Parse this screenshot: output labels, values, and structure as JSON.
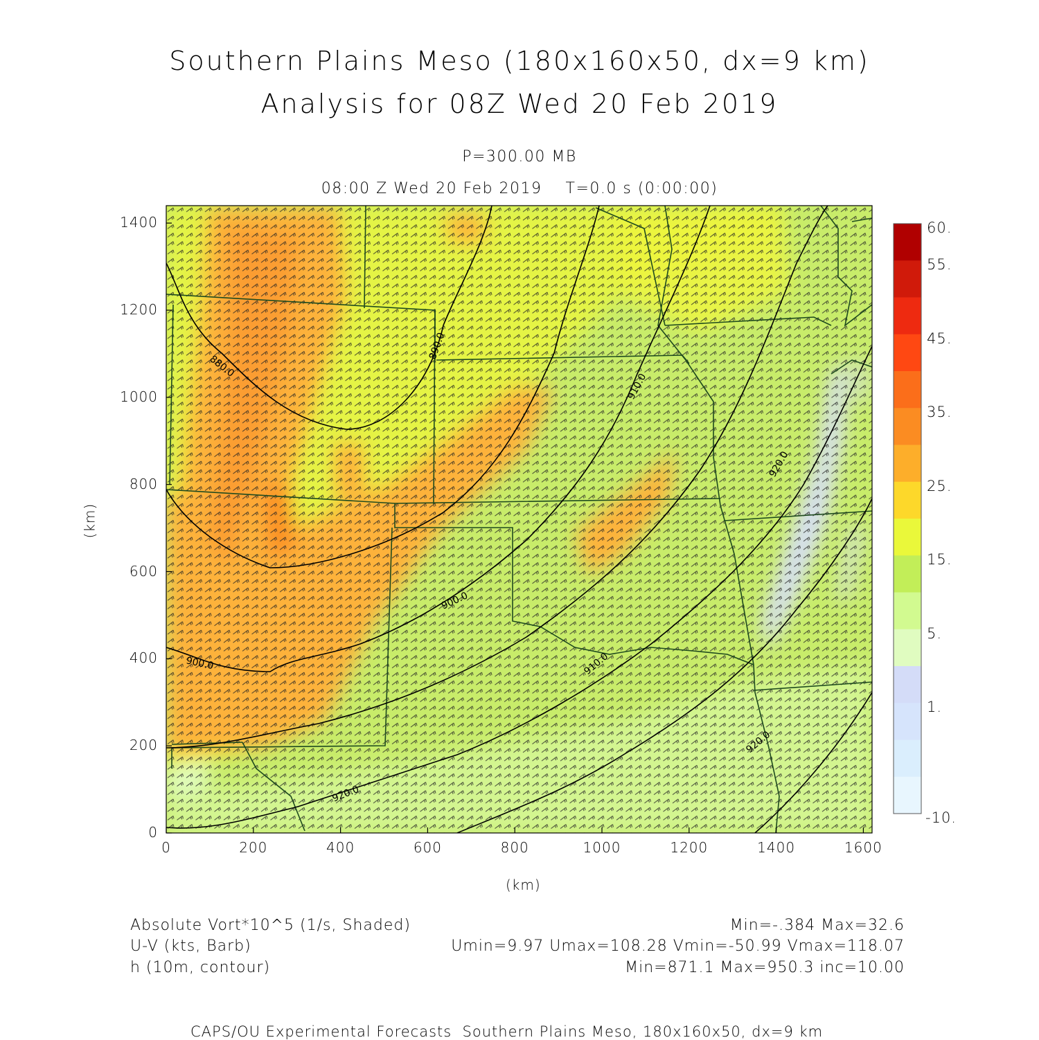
{
  "title_line1": "Southern Plains Meso (180x160x50, dx=9 km)",
  "title_line2": "Analysis for 08Z Wed 20 Feb 2019",
  "level_label": "P=300.00 MB",
  "time_label": "08:00 Z Wed 20 Feb 2019    T=0.0 s (0:00:00)",
  "axes": {
    "x_label": "(km)",
    "y_label": "(km)",
    "x_ticks": [
      "0",
      "200",
      "400",
      "600",
      "800",
      "1000",
      "1200",
      "1400",
      "1600"
    ],
    "y_ticks": [
      "0",
      "200",
      "400",
      "600",
      "800",
      "1000",
      "1200",
      "1400"
    ],
    "x_range_km": [
      0,
      1620
    ],
    "y_range_km": [
      0,
      1440
    ]
  },
  "colorbar": {
    "labels": [
      "60.",
      "55.",
      "45.",
      "35.",
      "25.",
      "15.",
      "5.",
      "1.",
      "-10."
    ],
    "colors": [
      "#b00000",
      "#d01a0a",
      "#ee2a10",
      "#ff4812",
      "#fb6e1a",
      "#fb8c22",
      "#fdae2a",
      "#fdd82a",
      "#eaf83a",
      "#c2ee58",
      "#d2fa90",
      "#e0fcc0",
      "#d4dcf8",
      "#d6e4fc",
      "#daeefd",
      "#e8f6fe"
    ]
  },
  "contour_labels": [
    "880.0",
    "890.0",
    "900.0",
    "910.0",
    "920.0"
  ],
  "field_legend": [
    {
      "left": "Absolute Vort*10^5 (1/s, Shaded)",
      "right": "Min=-.384 Max=32.6"
    },
    {
      "left": "U-V (kts, Barb)",
      "right": "Umin=9.97 Umax=108.28 Vmin=-50.99 Vmax=118.07"
    },
    {
      "left": "h (10m, contour)",
      "right": "Min=871.1 Max=950.3 inc=10.00"
    }
  ],
  "footer": "CAPS/OU Experimental Forecasts  Southern Plains Meso, 180x160x50, dx=9 km",
  "colors": {
    "base_field": "#c8ec6a",
    "warm_field": "#fdb23a",
    "yellow_field": "#eef640",
    "cool_field": "#d6def8",
    "state_lines": "#1e4a1e",
    "contours": "#000000",
    "barbs": "#222222"
  }
}
